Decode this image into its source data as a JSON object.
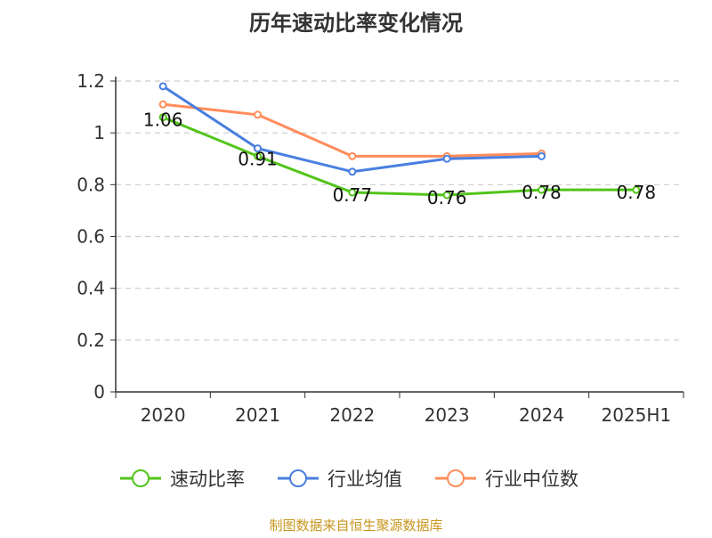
{
  "chart_data": {
    "type": "line",
    "title": "历年速动比率变化情况",
    "categories": [
      "2020",
      "2021",
      "2022",
      "2023",
      "2024",
      "2025H1"
    ],
    "ylim": [
      0,
      1.2
    ],
    "yticks": [
      "0",
      "0.2",
      "0.4",
      "0.6",
      "0.8",
      "1",
      "1.2"
    ],
    "grid": true,
    "legend_position": "bottom",
    "series": [
      {
        "name": "速动比率",
        "color": "#52c41a",
        "values": [
          1.06,
          0.91,
          0.77,
          0.76,
          0.78,
          0.78
        ],
        "labels": [
          "1.06",
          "0.91",
          "0.77",
          "0.76",
          "0.78",
          "0.78"
        ]
      },
      {
        "name": "行业均值",
        "color": "#4a7fe0",
        "values": [
          1.18,
          0.94,
          0.85,
          0.9,
          0.91,
          null
        ]
      },
      {
        "name": "行业中位数",
        "color": "#ff8c5a",
        "values": [
          1.11,
          1.07,
          0.91,
          0.91,
          0.92,
          null
        ]
      }
    ]
  },
  "source": "制图数据来自恒生聚源数据库"
}
